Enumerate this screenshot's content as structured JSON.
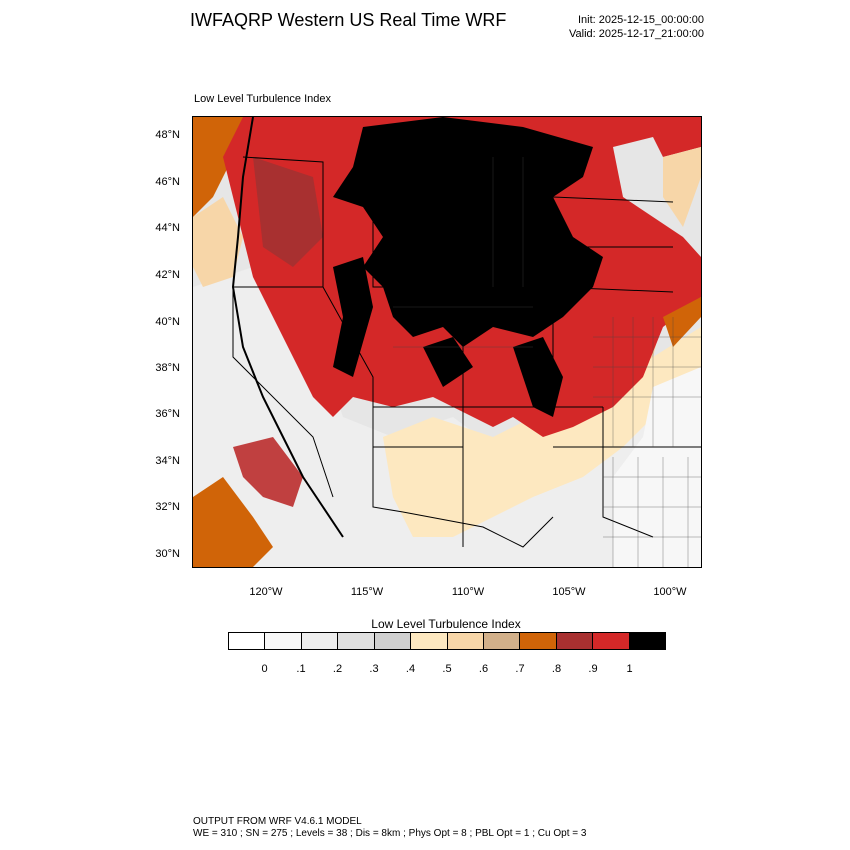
{
  "header": {
    "title": "IWFAQRP Western US Real Time WRF",
    "init": "Init: 2025-12-15_00:00:00",
    "valid": "Valid: 2025-12-17_21:00:00"
  },
  "panel": {
    "title": "Low Level Turbulence Index"
  },
  "axes": {
    "lat_labels": [
      "48°N",
      "46°N",
      "44°N",
      "42°N",
      "40°N",
      "38°N",
      "36°N",
      "34°N",
      "32°N",
      "30°N"
    ],
    "lon_labels": [
      "120°W",
      "115°W",
      "110°W",
      "105°W",
      "100°W"
    ]
  },
  "colorbar": {
    "title": "Low Level Turbulence Index",
    "labels": [
      "0",
      ".1",
      ".2",
      ".3",
      ".4",
      ".5",
      ".6",
      ".7",
      ".8",
      ".9",
      "1"
    ],
    "colors": [
      "#ffffff",
      "#f7f7f7",
      "#eeeeee",
      "#e0e0e0",
      "#d0d0d0",
      "#fde8c0",
      "#f7d6a8",
      "#d2b08a",
      "#d06408",
      "#a83030",
      "#d42828",
      "#000000"
    ]
  },
  "footer": {
    "line1": "OUTPUT FROM WRF V4.6.1 MODEL",
    "line2": "WE = 310 ; SN = 275 ; Levels = 38 ; Dis = 8km ; Phys Opt = 8 ; PBL Opt = 1 ; Cu Opt = 3"
  }
}
